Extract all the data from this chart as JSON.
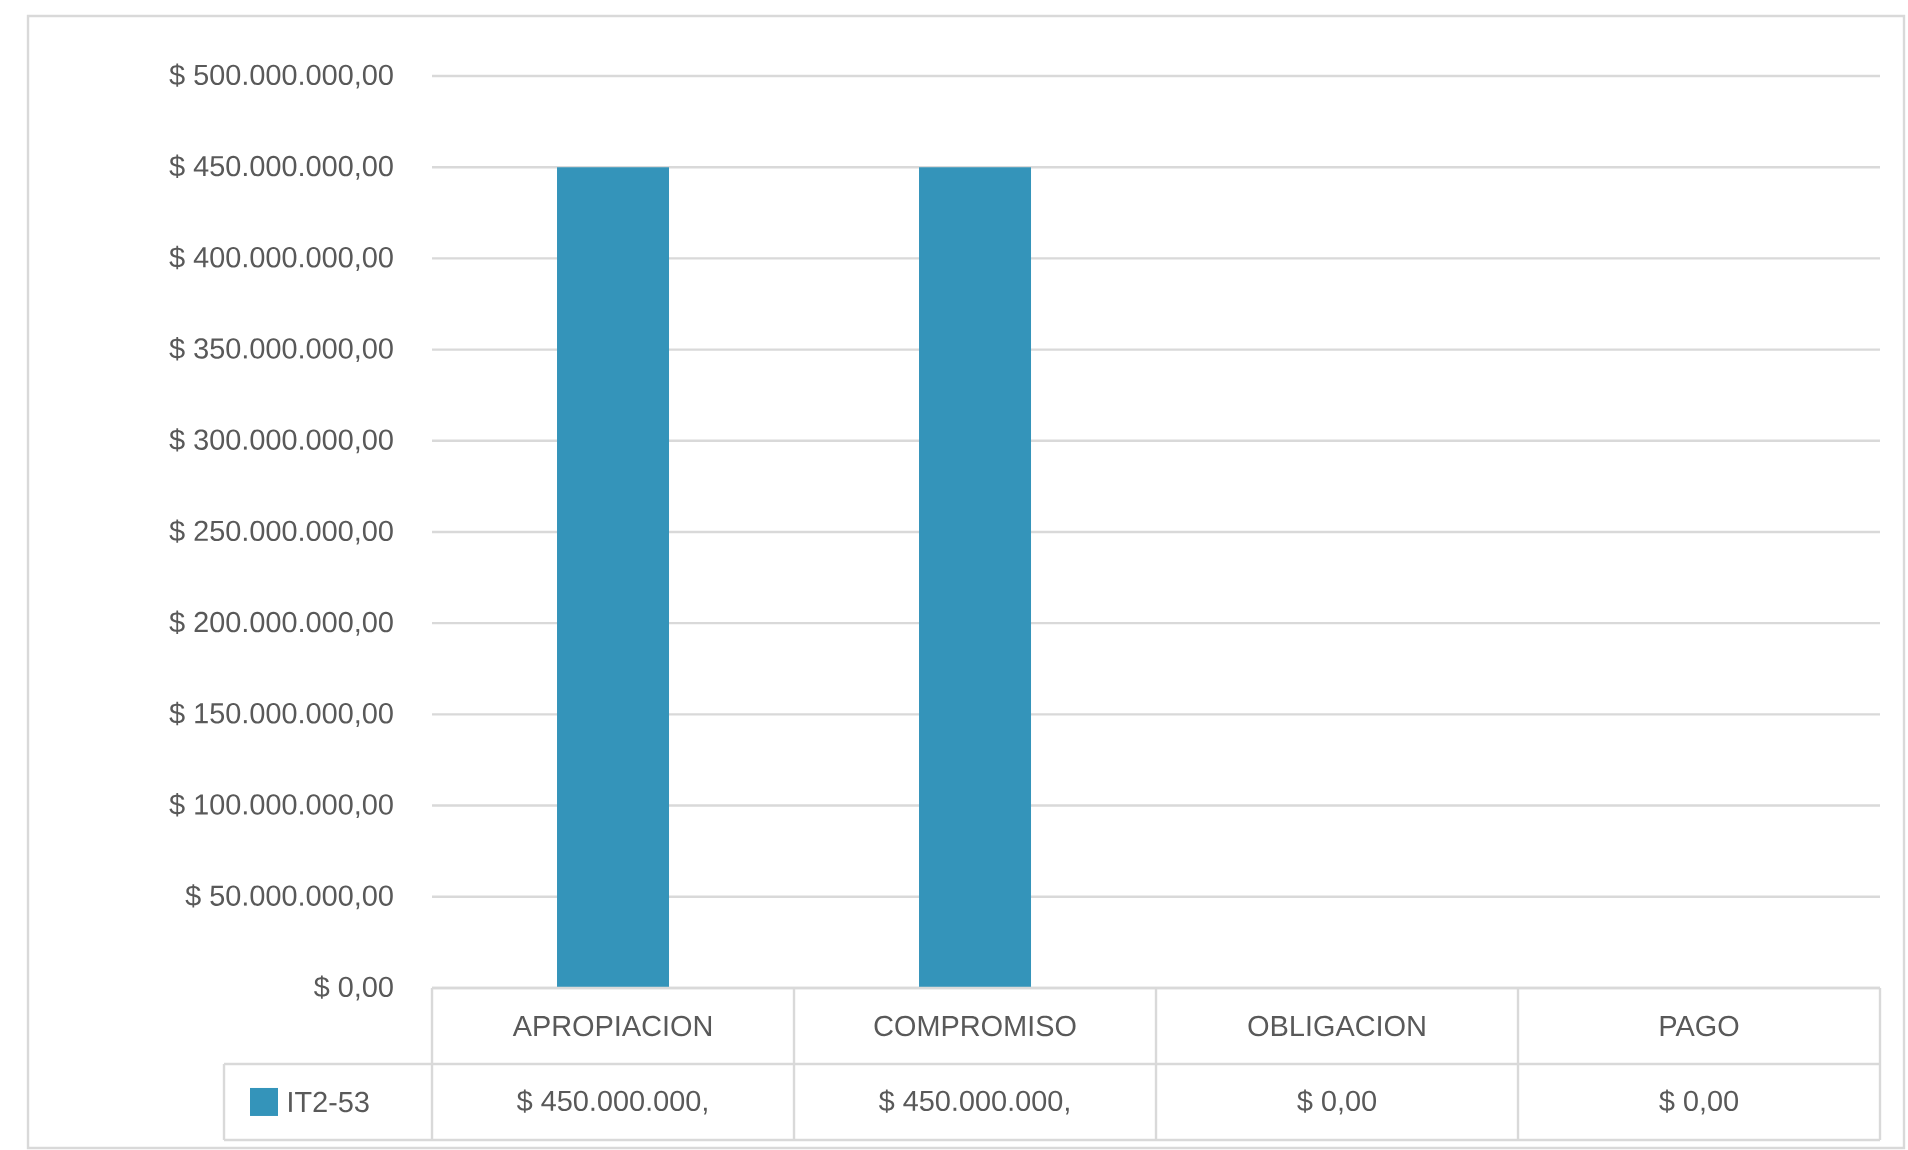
{
  "chart_data": {
    "type": "bar",
    "categories": [
      "APROPIACION",
      "COMPROMISO",
      "OBLIGACION",
      "PAGO"
    ],
    "series": [
      {
        "name": "IT2-53",
        "color": "#3494ba",
        "values": [
          450000000,
          450000000,
          0,
          0
        ],
        "value_labels": [
          "$ 450.000.000,",
          "$ 450.000.000,",
          "$ 0,00",
          "$ 0,00"
        ]
      }
    ],
    "ylim": [
      0,
      500000000
    ],
    "yticks": [
      {
        "value": 0,
        "label": "$ 0,00"
      },
      {
        "value": 50000000,
        "label": "$ 50.000.000,00"
      },
      {
        "value": 100000000,
        "label": "$ 100.000.000,00"
      },
      {
        "value": 150000000,
        "label": "$ 150.000.000,00"
      },
      {
        "value": 200000000,
        "label": "$ 200.000.000,00"
      },
      {
        "value": 250000000,
        "label": "$ 250.000.000,00"
      },
      {
        "value": 300000000,
        "label": "$ 300.000.000,00"
      },
      {
        "value": 350000000,
        "label": "$ 350.000.000,00"
      },
      {
        "value": 400000000,
        "label": "$ 400.000.000,00"
      },
      {
        "value": 450000000,
        "label": "$ 450.000.000,00"
      },
      {
        "value": 500000000,
        "label": "$ 500.000.000,00"
      }
    ],
    "grid": "y",
    "legend": "bottom"
  }
}
